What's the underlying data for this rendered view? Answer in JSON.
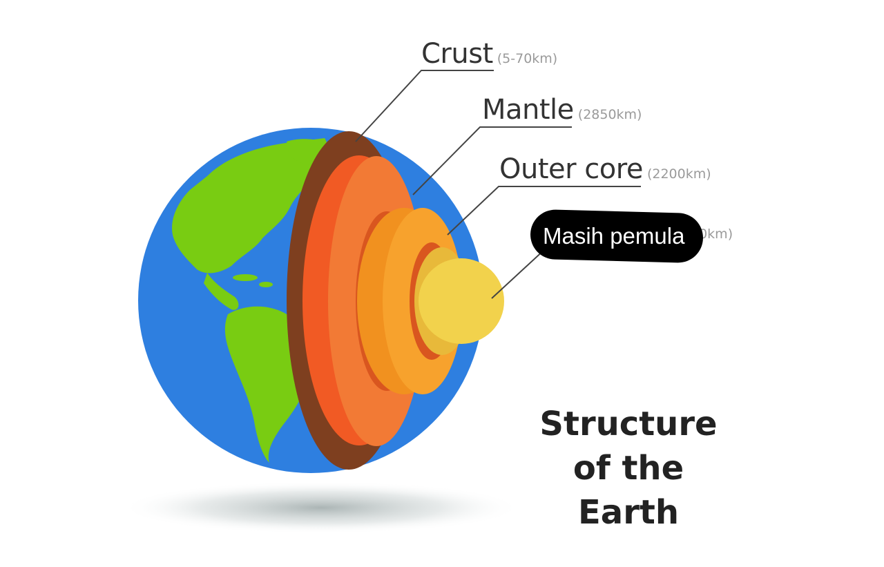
{
  "labels": {
    "crust": {
      "name": "Crust",
      "depth": "(5-70km)"
    },
    "mantle": {
      "name": "Mantle",
      "depth": "(2850km)"
    },
    "outer_core": {
      "name": "Outer core",
      "depth": "(2200km)"
    },
    "inner_core": {
      "depth_visible": "70km)"
    }
  },
  "sticker": {
    "text": "Masih pemula"
  },
  "title": {
    "line1": "Structure",
    "line2": "of the",
    "line3": "Earth"
  },
  "colors": {
    "ocean": "#2e7fe0",
    "land": "#79cc12",
    "crust": "#7e3f1f",
    "mantle_dark": "#f15a24",
    "mantle_light": "#f27a35",
    "outer_core": "#f7a22d",
    "outer_core_shadow": "#f1911f",
    "inner_core": "#f2d24c",
    "leader_line": "#444444"
  }
}
